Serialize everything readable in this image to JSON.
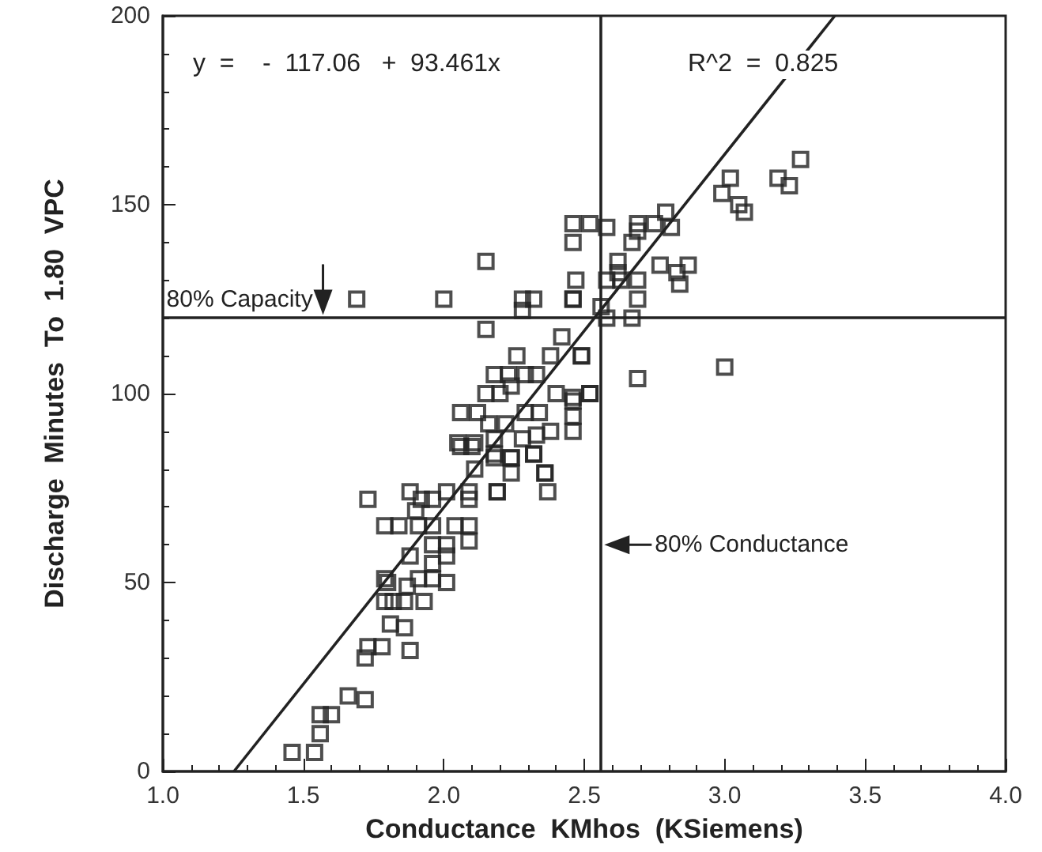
{
  "chart_data": {
    "type": "scatter",
    "xlabel": "Conductance  KMhos  (KSiemens)",
    "ylabel": "Discharge  Minutes  To  1.80  VPC",
    "xlim": [
      1.0,
      4.0
    ],
    "ylim": [
      0,
      200
    ],
    "xticks": [
      {
        "value": 1,
        "label": "1.0"
      },
      {
        "value": 1.5,
        "label": "1.5"
      },
      {
        "value": 2,
        "label": "2.0"
      },
      {
        "value": 2.5,
        "label": "2.5"
      },
      {
        "value": 3,
        "label": "3.0"
      },
      {
        "value": 3.5,
        "label": "3.5"
      },
      {
        "value": 4,
        "label": "4.0"
      }
    ],
    "yticks": [
      0,
      50,
      100,
      150,
      200
    ],
    "grid": false,
    "series": [
      {
        "marker": "square",
        "color": "#222222",
        "x": [
          1.46,
          1.54,
          1.56,
          1.56,
          1.6,
          1.66,
          1.72,
          1.72,
          1.73,
          1.78,
          1.88,
          1.86,
          1.81,
          1.79,
          1.82,
          1.86,
          1.93,
          1.8,
          1.79,
          1.87,
          1.91,
          1.96,
          2.01,
          1.88,
          1.96,
          1.96,
          2.01,
          2.01,
          1.79,
          1.84,
          1.91,
          1.96,
          2.04,
          2.09,
          2.09,
          1.73,
          1.88,
          1.92,
          1.96,
          2.01,
          2.09,
          2.09,
          2.19,
          1.9,
          2.11,
          2.18,
          2.24,
          2.24,
          2.36,
          2.32,
          2.06,
          2.1,
          2.0,
          2.28,
          2.32,
          2.46,
          2.15,
          2.42,
          2.38,
          2.49,
          2.26,
          2.18,
          2.23,
          2.29,
          2.33,
          2.24,
          2.15,
          2.2,
          2.4,
          2.46,
          2.52,
          2.06,
          2.12,
          2.29,
          2.34,
          2.16,
          2.22,
          2.46,
          2.46,
          2.05,
          2.11,
          2.28,
          2.33,
          2.38,
          2.18,
          2.32,
          2.18,
          2.24,
          2.36,
          2.37,
          2.19,
          2.28,
          3.27,
          3.02,
          2.99,
          3.05,
          3.07,
          3.19,
          3.23,
          2.79,
          2.75,
          2.81,
          2.46,
          2.52,
          2.58,
          2.69,
          2.69,
          2.67,
          2.46,
          2.77,
          2.87,
          2.83,
          2.84,
          2.62,
          2.62,
          2.47,
          2.58,
          2.63,
          2.69,
          2.69,
          2.46,
          2.56,
          2.67,
          2.58,
          2.49,
          3.0,
          2.69,
          2.52,
          2.46,
          1.69,
          2.15
        ],
        "values": [
          5,
          5,
          10,
          15,
          15,
          20,
          19,
          30,
          33,
          33,
          32,
          38,
          39,
          45,
          45,
          45,
          45,
          50,
          51,
          49,
          51,
          51,
          50,
          57,
          60,
          55,
          57,
          60,
          65,
          65,
          65,
          65,
          65,
          65,
          61,
          72,
          74,
          72,
          72,
          74,
          74,
          72,
          74,
          69,
          80,
          84,
          83,
          79,
          79,
          84,
          86,
          86,
          125,
          125,
          125,
          125,
          117,
          115,
          110,
          110,
          110,
          105,
          105,
          105,
          105,
          102,
          100,
          100,
          100,
          98,
          100,
          95,
          95,
          95,
          95,
          92,
          92,
          94,
          90,
          87,
          87,
          88,
          89,
          90,
          88,
          84,
          83,
          83,
          79,
          74,
          74,
          122,
          162,
          157,
          153,
          150,
          148,
          157,
          155,
          148,
          145,
          144,
          145,
          145,
          144,
          145,
          143,
          140,
          140,
          134,
          134,
          132,
          129,
          135,
          132,
          130,
          130,
          130,
          130,
          125,
          125,
          123,
          120,
          120,
          110,
          107,
          104,
          100,
          99,
          125,
          135
        ]
      },
      {
        "type": "line",
        "color": "#222222",
        "x": [
          1.253,
          3.392
        ],
        "values": [
          0,
          200
        ]
      }
    ],
    "ref_lines": [
      {
        "axis": "y",
        "value": 120,
        "color": "#222222",
        "label": "80% Capacity"
      },
      {
        "axis": "x",
        "value": 2.56,
        "color": "#222222",
        "label": "80% Conductance"
      }
    ],
    "annotations": [
      "y  =    -  117.06   +  93.461x",
      "R^2  =  0.825"
    ]
  }
}
